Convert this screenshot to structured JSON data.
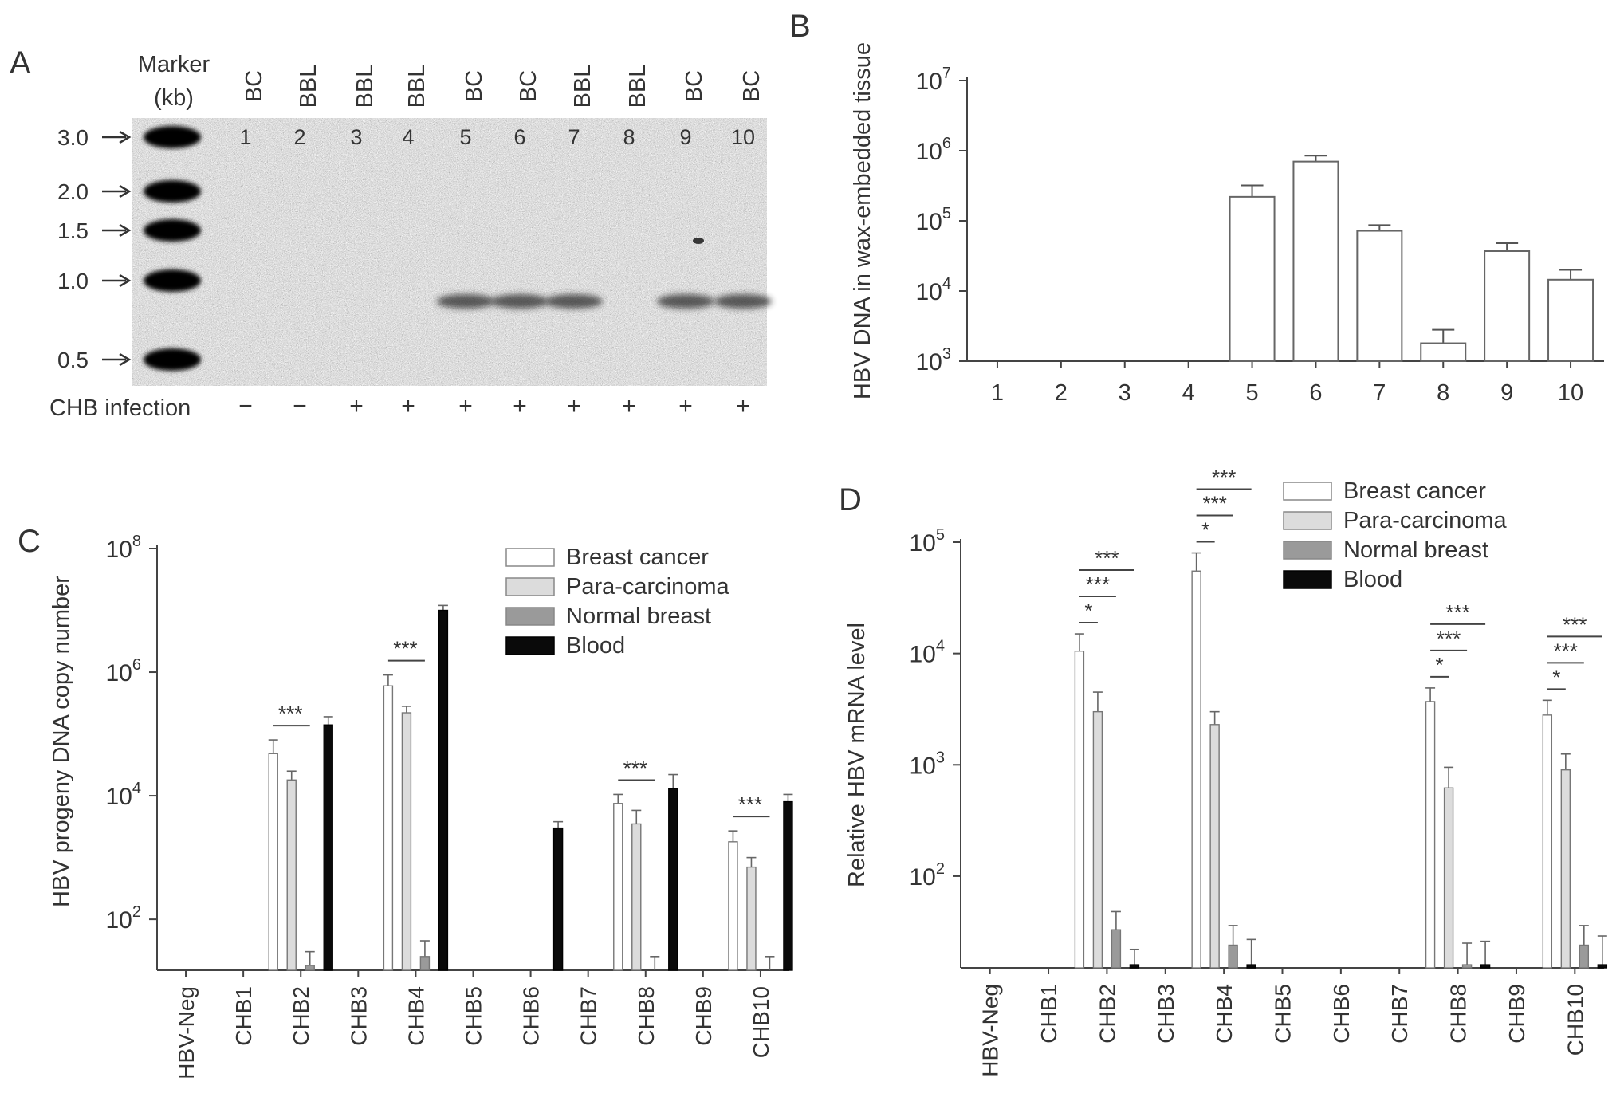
{
  "panels": {
    "A": {
      "letter": "A",
      "marker_label_1": "Marker",
      "marker_label_2": "(kb)",
      "marker_sizes": [
        "3.0",
        "2.0",
        "1.5",
        "1.0",
        "0.5"
      ],
      "lane_types": [
        "BC",
        "BBL",
        "BBL",
        "BBL",
        "BC",
        "BC",
        "BBL",
        "BBL",
        "BC",
        "BC"
      ],
      "lane_numbers": [
        "1",
        "2",
        "3",
        "4",
        "5",
        "6",
        "7",
        "8",
        "9",
        "10"
      ],
      "infection_label": "CHB infection",
      "infection_status": [
        "−",
        "−",
        "+",
        "+",
        "+",
        "+",
        "+",
        "+",
        "+",
        "+"
      ],
      "band_lanes": [
        5,
        6,
        7,
        9,
        10
      ]
    }
  },
  "chart_data": [
    {
      "panel": "B",
      "type": "bar",
      "ylabel": "HBV DNA in wax-embedded tissue",
      "yscale": "log",
      "ylim": [
        1000,
        10000000
      ],
      "yticks": [
        {
          "base": "10",
          "exp": "3",
          "value": 1000
        },
        {
          "base": "10",
          "exp": "4",
          "value": 10000
        },
        {
          "base": "10",
          "exp": "5",
          "value": 100000
        },
        {
          "base": "10",
          "exp": "6",
          "value": 1000000
        },
        {
          "base": "10",
          "exp": "7",
          "value": 10000000
        }
      ],
      "categories": [
        "1",
        "2",
        "3",
        "4",
        "5",
        "6",
        "7",
        "8",
        "9",
        "10"
      ],
      "values": [
        null,
        null,
        null,
        null,
        220000,
        700000,
        72000,
        1800,
        37000,
        14500
      ],
      "errors": [
        null,
        null,
        null,
        null,
        320000,
        850000,
        87000,
        2800,
        48000,
        20000
      ],
      "bar_color": "#ffffff"
    },
    {
      "panel": "C",
      "type": "bar",
      "ylabel": "HBV progeny DNA copy number",
      "yscale": "log",
      "ylim": [
        15,
        100000000
      ],
      "yticks": [
        {
          "base": "10",
          "exp": "2",
          "value": 100
        },
        {
          "base": "10",
          "exp": "4",
          "value": 10000
        },
        {
          "base": "10",
          "exp": "6",
          "value": 1000000
        },
        {
          "base": "10",
          "exp": "8",
          "value": 100000000
        }
      ],
      "categories": [
        "HBV-Neg",
        "CHB1",
        "CHB2",
        "CHB3",
        "CHB4",
        "CHB5",
        "CHB6",
        "CHB7",
        "CHB8",
        "CHB9",
        "CHB10"
      ],
      "legend": [
        "Breast cancer",
        "Para-carcinoma",
        "Normal breast",
        "Blood"
      ],
      "legend_position": "top-right",
      "series_colors": [
        "#ffffff",
        "#dcdcdc",
        "#9a9a9a",
        "#0a0a0a"
      ],
      "series": [
        {
          "name": "Breast cancer",
          "values": [
            null,
            null,
            48000,
            null,
            600000,
            null,
            null,
            null,
            7500,
            null,
            1800
          ],
          "errors": [
            null,
            null,
            80000,
            null,
            900000,
            null,
            null,
            null,
            10500,
            null,
            2700
          ]
        },
        {
          "name": "Para-carcinoma",
          "values": [
            null,
            null,
            18000,
            null,
            220000,
            null,
            null,
            null,
            3500,
            null,
            700
          ],
          "errors": [
            null,
            null,
            25000,
            null,
            280000,
            null,
            null,
            null,
            5800,
            null,
            1000
          ]
        },
        {
          "name": "Normal breast",
          "values": [
            null,
            null,
            18,
            null,
            25,
            null,
            null,
            null,
            15,
            null,
            15
          ],
          "errors": [
            null,
            null,
            30,
            null,
            45,
            null,
            null,
            null,
            25,
            null,
            25
          ]
        },
        {
          "name": "Blood",
          "values": [
            null,
            null,
            140000,
            null,
            10000000,
            null,
            3000,
            null,
            13000,
            null,
            8000
          ],
          "errors": [
            null,
            null,
            190000,
            null,
            12000000,
            null,
            3800,
            null,
            22000,
            null,
            10500
          ]
        }
      ],
      "significance": [
        {
          "category": "CHB2",
          "label": "***"
        },
        {
          "category": "CHB4",
          "label": "***"
        },
        {
          "category": "CHB8",
          "label": "***"
        },
        {
          "category": "CHB10",
          "label": "***"
        }
      ]
    },
    {
      "panel": "D",
      "type": "bar",
      "ylabel": "Relative HBV mRNA level",
      "yscale": "log",
      "ylim": [
        15,
        100000
      ],
      "yticks": [
        {
          "base": "10",
          "exp": "2",
          "value": 100
        },
        {
          "base": "10",
          "exp": "3",
          "value": 1000
        },
        {
          "base": "10",
          "exp": "4",
          "value": 10000
        },
        {
          "base": "10",
          "exp": "5",
          "value": 100000
        }
      ],
      "categories": [
        "HBV-Neg",
        "CHB1",
        "CHB2",
        "CHB3",
        "CHB4",
        "CHB5",
        "CHB6",
        "CHB7",
        "CHB8",
        "CHB9",
        "CHB10"
      ],
      "legend": [
        "Breast cancer",
        "Para-carcinoma",
        "Normal breast",
        "Blood"
      ],
      "legend_position": "top-right",
      "series_colors": [
        "#ffffff",
        "#dcdcdc",
        "#9a9a9a",
        "#0a0a0a"
      ],
      "series": [
        {
          "name": "Breast cancer",
          "values": [
            null,
            null,
            10500,
            null,
            55000,
            null,
            null,
            null,
            3700,
            null,
            2800
          ],
          "errors": [
            null,
            null,
            15000,
            null,
            80000,
            null,
            null,
            null,
            4900,
            null,
            3800
          ]
        },
        {
          "name": "Para-carcinoma",
          "values": [
            null,
            null,
            3000,
            null,
            2300,
            null,
            null,
            null,
            620,
            null,
            900
          ],
          "errors": [
            null,
            null,
            4500,
            null,
            3000,
            null,
            null,
            null,
            950,
            null,
            1250
          ]
        },
        {
          "name": "Normal breast",
          "values": [
            null,
            null,
            33,
            null,
            24,
            null,
            null,
            null,
            16,
            null,
            24
          ],
          "errors": [
            null,
            null,
            48,
            null,
            36,
            null,
            null,
            null,
            25,
            null,
            36
          ]
        },
        {
          "name": "Blood",
          "values": [
            null,
            null,
            16,
            null,
            16,
            null,
            null,
            null,
            16,
            null,
            16
          ],
          "errors": [
            null,
            null,
            22,
            null,
            27,
            null,
            null,
            null,
            26,
            null,
            29
          ]
        }
      ],
      "significance": [
        {
          "category": "CHB2",
          "labels": [
            "***",
            "***",
            "*"
          ]
        },
        {
          "category": "CHB4",
          "labels": [
            "***",
            "***",
            "*"
          ]
        },
        {
          "category": "CHB8",
          "labels": [
            "***",
            "***",
            "*"
          ]
        },
        {
          "category": "CHB10",
          "labels": [
            "***",
            "***",
            "*"
          ]
        }
      ]
    }
  ]
}
